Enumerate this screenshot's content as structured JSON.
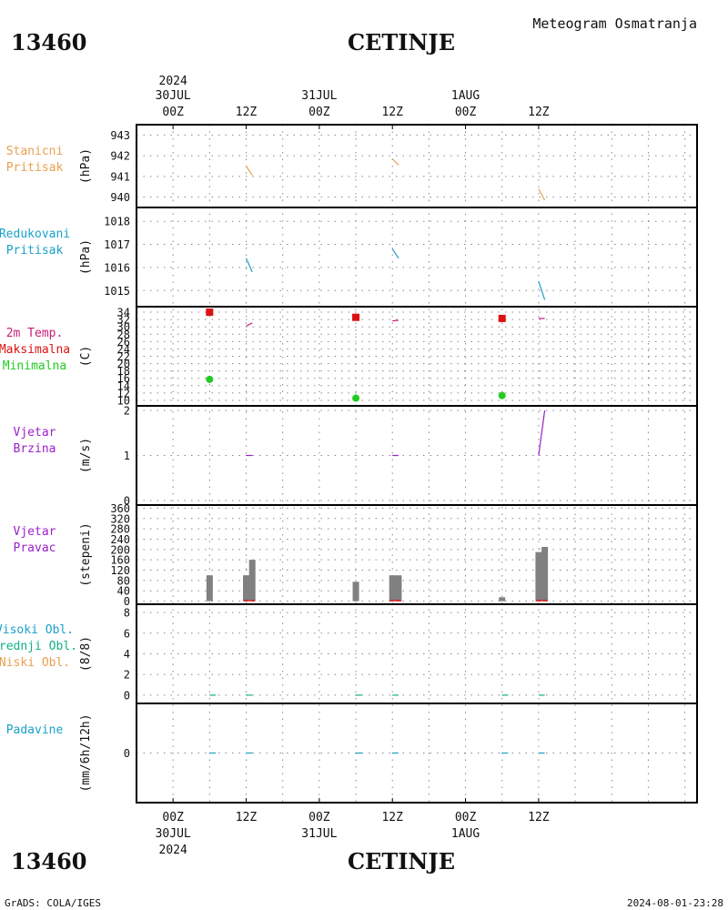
{
  "header": {
    "station_id": "13460",
    "station_name": "CETINJE",
    "product": "Meteogram Osmatranja"
  },
  "footer": {
    "station_id": "13460",
    "station_name": "CETINJE",
    "credit": "GrADS: COLA/IGES",
    "timestamp": "2024-08-01-23:28"
  },
  "colors": {
    "pressure": "#e8a050",
    "reduced": "#1aa0c8",
    "temp_line": "#c81e78",
    "tmax": "#dd1111",
    "tmin": "#22cc22",
    "wind": "#9b1fc8",
    "bars": "#808080",
    "high_cloud": "#1aa0c8",
    "mid_cloud": "#10b080",
    "low_cloud": "#e8a050",
    "precip": "#1aa0c8"
  },
  "chart_data": {
    "type": "line",
    "x_axis": {
      "top_labels": [
        {
          "line1": "2024",
          "line2": "30JUL",
          "line3": "00Z"
        },
        {
          "line1": "",
          "line2": "",
          "line3": "12Z"
        },
        {
          "line1": "",
          "line2": "31JUL",
          "line3": "00Z"
        },
        {
          "line1": "",
          "line2": "",
          "line3": "12Z"
        },
        {
          "line1": "",
          "line2": "1AUG",
          "line3": "00Z"
        },
        {
          "line1": "",
          "line2": "",
          "line3": "12Z"
        }
      ],
      "bottom_labels": [
        {
          "line1": "00Z",
          "line2": "30JUL",
          "line3": "2024"
        },
        {
          "line1": "12Z",
          "line2": "",
          "line3": ""
        },
        {
          "line1": "00Z",
          "line2": "31JUL",
          "line3": ""
        },
        {
          "line1": "12Z",
          "line2": "",
          "line3": ""
        },
        {
          "line1": "00Z",
          "line2": "1AUG",
          "line3": ""
        },
        {
          "line1": "12Z",
          "line2": "",
          "line3": ""
        }
      ],
      "range_hours": [
        -6,
        86
      ]
    },
    "panels": [
      {
        "key": "station_pressure",
        "labels": [
          "Stanicni",
          "Pritisak"
        ],
        "label_colors": [
          "pressure",
          "pressure"
        ],
        "unit": "(hPa)",
        "ylim": [
          939.5,
          943.5
        ],
        "yticks": [
          "940",
          "941",
          "942",
          "943"
        ],
        "ytick_values": [
          940,
          941,
          942,
          943
        ],
        "series": [
          {
            "color": "pressure",
            "x": [
              12,
              13
            ],
            "y": [
              941.5,
              941.05
            ]
          },
          {
            "color": "pressure",
            "x": [
              36,
              37
            ],
            "y": [
              941.85,
              941.55
            ]
          },
          {
            "color": "pressure",
            "x": [
              60,
              61
            ],
            "y": [
              940.4,
              939.85
            ]
          }
        ]
      },
      {
        "key": "reduced_pressure",
        "labels": [
          "Redukovani",
          "Pritisak"
        ],
        "label_colors": [
          "reduced",
          "reduced"
        ],
        "unit": "(hPa)",
        "ylim": [
          1014.3,
          1018.6
        ],
        "yticks": [
          "1015",
          "1016",
          "1017",
          "1018"
        ],
        "ytick_values": [
          1015,
          1016,
          1017,
          1018
        ],
        "series": [
          {
            "color": "reduced",
            "x": [
              12,
              13
            ],
            "y": [
              1016.4,
              1015.8
            ]
          },
          {
            "color": "reduced",
            "x": [
              36,
              37
            ],
            "y": [
              1016.8,
              1016.4
            ]
          },
          {
            "color": "reduced",
            "x": [
              60,
              61
            ],
            "y": [
              1015.4,
              1014.6
            ]
          }
        ]
      },
      {
        "key": "temperature",
        "labels": [
          "2m Temp.",
          "Maksimalna",
          "Minimalna"
        ],
        "label_colors": [
          "temp_line",
          "tmax",
          "tmin"
        ],
        "unit": "(C)",
        "ylim": [
          8.5,
          35.5
        ],
        "yticks": [
          "10",
          "12",
          "14",
          "16",
          "18",
          "20",
          "22",
          "24",
          "26",
          "28",
          "30",
          "32",
          "34"
        ],
        "ytick_values": [
          10,
          12,
          14,
          16,
          18,
          20,
          22,
          24,
          26,
          28,
          30,
          32,
          34
        ],
        "series": [
          {
            "color": "temp_line",
            "x": [
              12,
              13
            ],
            "y": [
              30.2,
              31.1
            ]
          },
          {
            "color": "temp_line",
            "x": [
              36,
              37
            ],
            "y": [
              31.6,
              31.8
            ]
          },
          {
            "color": "temp_line",
            "x": [
              60,
              61
            ],
            "y": [
              32.3,
              32.3
            ]
          }
        ],
        "markers_max": {
          "x": [
            6,
            30,
            54
          ],
          "y": [
            34.0,
            32.6,
            32.3
          ]
        },
        "markers_min": {
          "x": [
            6,
            30,
            54
          ],
          "y": [
            15.7,
            10.6,
            11.3
          ]
        }
      },
      {
        "key": "wind_speed",
        "labels": [
          "Vjetar",
          "Brzina"
        ],
        "label_colors": [
          "wind",
          "wind"
        ],
        "unit": "(m/s)",
        "ylim": [
          -0.1,
          2.1
        ],
        "yticks": [
          "0",
          "1",
          "2"
        ],
        "ytick_values": [
          0,
          1,
          2
        ],
        "series": [
          {
            "color": "wind",
            "x": [
              12,
              13
            ],
            "y": [
              1,
              1
            ]
          },
          {
            "color": "wind",
            "x": [
              36,
              37
            ],
            "y": [
              1,
              1
            ]
          },
          {
            "color": "wind",
            "x": [
              60,
              61
            ],
            "y": [
              1,
              2
            ]
          }
        ]
      },
      {
        "key": "wind_direction",
        "labels": [
          "Vjetar",
          "Pravac"
        ],
        "label_colors": [
          "wind",
          "wind"
        ],
        "unit": "(stepeni)",
        "ylim": [
          -12,
          372
        ],
        "yticks": [
          "0",
          "40",
          "80",
          "120",
          "160",
          "200",
          "240",
          "280",
          "320",
          "360"
        ],
        "ytick_values": [
          0,
          40,
          80,
          120,
          160,
          200,
          240,
          280,
          320,
          360
        ],
        "bars": [
          {
            "x": 6,
            "value": 100
          },
          {
            "x": 12,
            "value": 100
          },
          {
            "x": 13,
            "value": 160
          },
          {
            "x": 30,
            "value": 75
          },
          {
            "x": 36,
            "value": 100
          },
          {
            "x": 37,
            "value": 100
          },
          {
            "x": 54,
            "value": 15
          },
          {
            "x": 60,
            "value": 190
          },
          {
            "x": 61,
            "value": 210
          }
        ],
        "marks": {
          "color": "tmax",
          "x": [
            12,
            13,
            36,
            37,
            60,
            61
          ],
          "y": [
            2,
            2,
            2,
            2,
            2,
            2
          ]
        }
      },
      {
        "key": "cloud",
        "labels": [
          "Visoki Obl.",
          "Srednji Obl.",
          "Niski Obl."
        ],
        "label_colors": [
          "high_cloud",
          "mid_cloud",
          "low_cloud"
        ],
        "unit": "(8/8)",
        "ylim": [
          -0.8,
          8.8
        ],
        "yticks": [
          "0",
          "2",
          "4",
          "6",
          "8"
        ],
        "ytick_values": [
          0,
          2,
          4,
          6,
          8
        ],
        "series": [
          {
            "color": "mid_cloud",
            "x": [
              6,
              7
            ],
            "y": [
              0,
              0
            ]
          },
          {
            "color": "mid_cloud",
            "x": [
              12,
              13
            ],
            "y": [
              0,
              0
            ]
          },
          {
            "color": "mid_cloud",
            "x": [
              30,
              31
            ],
            "y": [
              0,
              0
            ]
          },
          {
            "color": "mid_cloud",
            "x": [
              36,
              37
            ],
            "y": [
              0,
              0
            ]
          },
          {
            "color": "mid_cloud",
            "x": [
              54,
              55
            ],
            "y": [
              0,
              0
            ]
          },
          {
            "color": "mid_cloud",
            "x": [
              60,
              61
            ],
            "y": [
              0,
              0
            ]
          }
        ]
      },
      {
        "key": "precip",
        "labels": [
          "Padavine"
        ],
        "label_colors": [
          "precip"
        ],
        "unit": "(mm/6h/12h)",
        "ylim": [
          -5,
          5
        ],
        "yticks": [
          "0"
        ],
        "ytick_values": [
          0
        ],
        "series": [
          {
            "color": "precip",
            "x": [
              6,
              7
            ],
            "y": [
              0,
              0
            ]
          },
          {
            "color": "precip",
            "x": [
              12,
              13
            ],
            "y": [
              0,
              0
            ]
          },
          {
            "color": "precip",
            "x": [
              30,
              31
            ],
            "y": [
              0,
              0
            ]
          },
          {
            "color": "precip",
            "x": [
              36,
              37
            ],
            "y": [
              0,
              0
            ]
          },
          {
            "color": "precip",
            "x": [
              54,
              55
            ],
            "y": [
              0,
              0
            ]
          },
          {
            "color": "precip",
            "x": [
              60,
              61
            ],
            "y": [
              0,
              0
            ]
          }
        ]
      }
    ]
  }
}
